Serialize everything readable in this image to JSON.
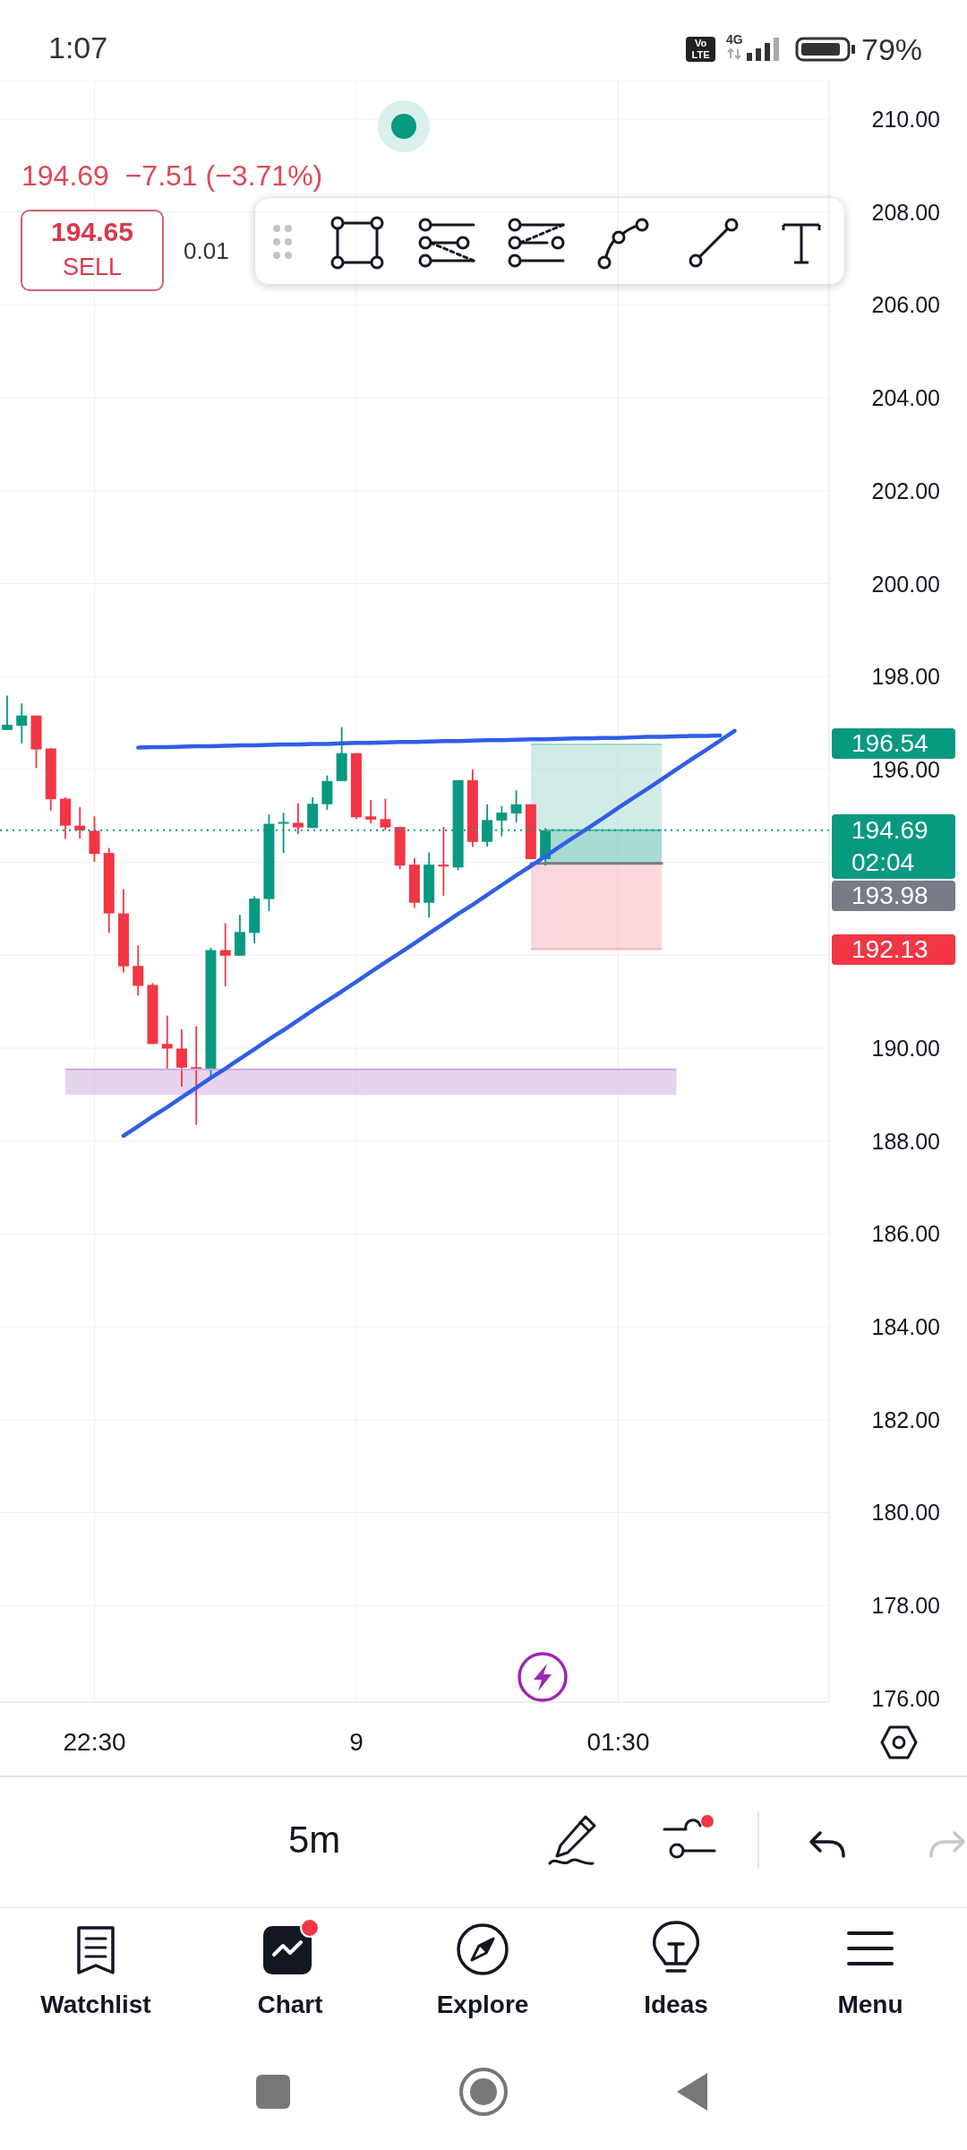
{
  "chart_data": {
    "type": "candlestick",
    "subtitle": "194.69  −7.51 (−3.71%)",
    "categories": [
      null,
      null,
      null,
      null,
      null,
      null,
      "22:30",
      null,
      null,
      null,
      null,
      null,
      null,
      null,
      null,
      null,
      null,
      null,
      null,
      null,
      null,
      null,
      null,
      null,
      "9",
      null,
      null,
      null,
      null,
      null,
      null,
      null,
      null,
      null,
      null,
      null,
      null,
      null,
      null,
      null,
      null,
      null,
      "01:30",
      null,
      null,
      null,
      null,
      null,
      null,
      null,
      null,
      null,
      null,
      null,
      null,
      null,
      null
    ],
    "series": [
      {
        "type": "line",
        "values": [
          null,
          null,
          null,
          null,
          189.54,
          189.54,
          189.54,
          189.54,
          189.54,
          189.54,
          189.54,
          189.54,
          189.54,
          189.54,
          189.54,
          189.54,
          189.54,
          189.54,
          189.54,
          189.54,
          189.54,
          189.54,
          189.54,
          189.54,
          189.54,
          189.54,
          189.54,
          189.54,
          189.54,
          189.54,
          189.54,
          189.54,
          189.54,
          189.54,
          189.54,
          189.54,
          189.54,
          189.54,
          189.54,
          189.54,
          189.54,
          189.54,
          189.54,
          189.54,
          189.54,
          189.54,
          189.54,
          null,
          null,
          null,
          null,
          null,
          null,
          null,
          null,
          null,
          null
        ],
        "lower": [
          null,
          null,
          null,
          null,
          188.99,
          188.99,
          188.99,
          188.99,
          188.99,
          188.99,
          188.99,
          188.99,
          188.99,
          188.99,
          188.99,
          188.99,
          188.99,
          188.99,
          188.99,
          188.99,
          188.99,
          188.99,
          188.99,
          188.99,
          188.99,
          188.99,
          188.99,
          188.99,
          188.99,
          188.99,
          188.99,
          188.99,
          188.99,
          188.99,
          188.99,
          188.99,
          188.99,
          188.99,
          188.99,
          188.99,
          188.99,
          188.99,
          188.99,
          188.99,
          188.99,
          188.99,
          188.99,
          null,
          null,
          null,
          null,
          null,
          null,
          null,
          null,
          null,
          null
        ],
        "upper": [
          null,
          null,
          null,
          null,
          189.54,
          189.54,
          189.54,
          189.54,
          189.54,
          189.54,
          189.54,
          189.54,
          189.54,
          189.54,
          189.54,
          189.54,
          189.54,
          189.54,
          189.54,
          189.54,
          189.54,
          189.54,
          189.54,
          189.54,
          189.54,
          189.54,
          189.54,
          189.54,
          189.54,
          189.54,
          189.54,
          189.54,
          189.54,
          189.54,
          189.54,
          189.54,
          189.54,
          189.54,
          189.54,
          189.54,
          189.54,
          189.54,
          189.54,
          189.54,
          189.54,
          189.54,
          189.54,
          null,
          null,
          null,
          null,
          null,
          null,
          null,
          null,
          null,
          null
        ],
        "color": "#cda9df"
      },
      {
        "type": "line",
        "values": [
          null,
          null,
          null,
          null,
          null,
          null,
          null,
          null,
          null,
          null,
          null,
          null,
          null,
          null,
          null,
          null,
          null,
          null,
          null,
          null,
          null,
          null,
          null,
          null,
          null,
          null,
          null,
          null,
          null,
          null,
          null,
          null,
          null,
          null,
          null,
          null,
          196.54,
          196.54,
          196.54,
          196.54,
          196.54,
          196.54,
          196.54,
          196.54,
          196.54,
          196.54,
          null,
          null,
          null,
          null,
          null,
          null,
          null,
          null,
          null,
          null,
          null
        ],
        "lower": [
          null,
          null,
          null,
          null,
          null,
          null,
          null,
          null,
          null,
          null,
          null,
          null,
          null,
          null,
          null,
          null,
          null,
          null,
          null,
          null,
          null,
          null,
          null,
          null,
          null,
          null,
          null,
          null,
          null,
          null,
          null,
          null,
          null,
          null,
          null,
          null,
          194.69,
          194.69,
          194.69,
          194.69,
          194.69,
          194.69,
          194.69,
          194.69,
          194.69,
          194.69,
          null,
          null,
          null,
          null,
          null,
          null,
          null,
          null,
          null,
          null,
          null
        ],
        "upper": [
          null,
          null,
          null,
          null,
          null,
          null,
          null,
          null,
          null,
          null,
          null,
          null,
          null,
          null,
          null,
          null,
          null,
          null,
          null,
          null,
          null,
          null,
          null,
          null,
          null,
          null,
          null,
          null,
          null,
          null,
          null,
          null,
          null,
          null,
          null,
          null,
          196.54,
          196.54,
          196.54,
          196.54,
          196.54,
          196.54,
          196.54,
          196.54,
          196.54,
          196.54,
          null,
          null,
          null,
          null,
          null,
          null,
          null,
          null,
          null,
          null,
          null
        ],
        "color": "#a3d9cf"
      },
      {
        "type": "line",
        "values": [
          null,
          null,
          null,
          null,
          null,
          null,
          null,
          null,
          null,
          null,
          null,
          null,
          null,
          null,
          null,
          null,
          null,
          null,
          null,
          null,
          null,
          null,
          null,
          null,
          null,
          null,
          null,
          null,
          null,
          null,
          null,
          null,
          null,
          null,
          null,
          null,
          null,
          194.69,
          194.69,
          194.69,
          194.69,
          194.69,
          194.69,
          194.69,
          194.69,
          194.69,
          null,
          null,
          null,
          null,
          null,
          null,
          null,
          null,
          null,
          null,
          null
        ],
        "lower": [
          null,
          null,
          null,
          null,
          null,
          null,
          null,
          null,
          null,
          null,
          null,
          null,
          null,
          null,
          null,
          null,
          null,
          null,
          null,
          null,
          null,
          null,
          null,
          null,
          null,
          null,
          null,
          null,
          null,
          null,
          null,
          null,
          null,
          null,
          null,
          null,
          null,
          193.98,
          193.98,
          193.98,
          193.98,
          193.98,
          193.98,
          193.98,
          193.98,
          193.98,
          null,
          null,
          null,
          null,
          null,
          null,
          null,
          null,
          null,
          null,
          null
        ],
        "upper": [
          null,
          null,
          null,
          null,
          null,
          null,
          null,
          null,
          null,
          null,
          null,
          null,
          null,
          null,
          null,
          null,
          null,
          null,
          null,
          null,
          null,
          null,
          null,
          null,
          null,
          null,
          null,
          null,
          null,
          null,
          null,
          null,
          null,
          null,
          null,
          null,
          null,
          194.69,
          194.69,
          194.69,
          194.69,
          194.69,
          194.69,
          194.69,
          194.69,
          194.69,
          null,
          null,
          null,
          null,
          null,
          null,
          null,
          null,
          null,
          null,
          null
        ],
        "color": "#51b9a5"
      },
      {
        "type": "line",
        "values": [
          null,
          null,
          null,
          null,
          null,
          null,
          null,
          null,
          null,
          null,
          null,
          null,
          null,
          null,
          null,
          null,
          null,
          null,
          null,
          null,
          null,
          null,
          null,
          null,
          null,
          null,
          null,
          null,
          null,
          null,
          null,
          null,
          null,
          null,
          null,
          null,
          192.13,
          192.13,
          192.13,
          192.13,
          192.13,
          192.13,
          192.13,
          192.13,
          192.13,
          192.13,
          null,
          null,
          null,
          null,
          null,
          null,
          null,
          null,
          null,
          null,
          null
        ],
        "lower": [
          null,
          null,
          null,
          null,
          null,
          null,
          null,
          null,
          null,
          null,
          null,
          null,
          null,
          null,
          null,
          null,
          null,
          null,
          null,
          null,
          null,
          null,
          null,
          null,
          null,
          null,
          null,
          null,
          null,
          null,
          null,
          null,
          null,
          null,
          null,
          null,
          192.13,
          192.13,
          192.13,
          192.13,
          192.13,
          192.13,
          192.13,
          192.13,
          192.13,
          192.13,
          null,
          null,
          null,
          null,
          null,
          null,
          null,
          null,
          null,
          null,
          null
        ],
        "upper": [
          null,
          null,
          null,
          null,
          null,
          null,
          null,
          null,
          null,
          null,
          null,
          null,
          null,
          null,
          null,
          null,
          null,
          null,
          null,
          null,
          null,
          null,
          null,
          null,
          null,
          null,
          null,
          null,
          null,
          null,
          null,
          null,
          null,
          null,
          null,
          null,
          193.98,
          193.98,
          193.98,
          193.98,
          193.98,
          193.98,
          193.98,
          193.98,
          193.98,
          193.98,
          null,
          null,
          null,
          null,
          null,
          null,
          null,
          null,
          null,
          null,
          null
        ],
        "color": "#f7b1b9"
      },
      {
        "ohlc": [
          [
            196.85,
            197.59,
            196.85,
            196.96
          ],
          [
            196.94,
            197.42,
            196.56,
            197.16
          ],
          [
            197.16,
            197.16,
            196.03,
            196.43
          ],
          [
            196.45,
            196.46,
            195.11,
            195.36
          ],
          [
            195.37,
            195.4,
            194.51,
            194.79
          ],
          [
            194.79,
            195.19,
            194.51,
            194.69
          ],
          [
            194.68,
            194.99,
            194.01,
            194.18
          ],
          [
            194.2,
            194.31,
            192.48,
            192.9
          ],
          [
            192.9,
            193.42,
            191.63,
            191.76
          ],
          [
            191.77,
            192.21,
            191.13,
            191.34
          ],
          [
            191.36,
            191.4,
            190.09,
            190.09
          ],
          [
            190.09,
            190.7,
            189.54,
            189.99
          ],
          [
            189.99,
            190.4,
            189.17,
            189.58
          ],
          [
            189.59,
            190.47,
            188.35,
            189.54
          ],
          [
            189.54,
            192.16,
            189.38,
            192.11
          ],
          [
            192.11,
            192.69,
            191.33,
            191.99
          ],
          [
            191.99,
            192.87,
            191.99,
            192.5
          ],
          [
            192.48,
            193.27,
            192.26,
            193.22
          ],
          [
            193.21,
            195.03,
            192.95,
            194.83
          ],
          [
            194.84,
            195.07,
            194.2,
            194.87
          ],
          [
            194.85,
            195.27,
            194.61,
            194.75
          ],
          [
            194.74,
            195.4,
            194.74,
            195.26
          ],
          [
            195.25,
            195.87,
            195.13,
            195.75
          ],
          [
            195.75,
            196.91,
            195.75,
            196.35
          ],
          [
            196.35,
            196.35,
            194.93,
            194.97
          ],
          [
            194.99,
            195.34,
            194.84,
            194.92
          ],
          [
            194.93,
            195.37,
            194.69,
            194.75
          ],
          [
            194.76,
            194.77,
            193.85,
            193.93
          ],
          [
            193.95,
            194.09,
            193.02,
            193.13
          ],
          [
            193.13,
            194.21,
            192.81,
            193.95
          ],
          [
            193.95,
            194.76,
            193.28,
            193.91
          ],
          [
            193.89,
            195.77,
            193.83,
            195.77
          ],
          [
            195.77,
            196.0,
            194.33,
            194.44
          ],
          [
            194.44,
            195.25,
            194.34,
            194.91
          ],
          [
            194.9,
            195.21,
            194.56,
            195.07
          ],
          [
            195.05,
            195.55,
            194.86,
            195.25
          ],
          [
            195.25,
            195.25,
            194.07,
            194.07
          ],
          [
            194.07,
            194.74,
            193.93,
            194.69
          ],
          null,
          null,
          null,
          null,
          null,
          null,
          null,
          null,
          null,
          null,
          null,
          null,
          null,
          null,
          null,
          null,
          null,
          null,
          null
        ],
        "colors": [
          "#089981",
          "#089981",
          "#f23645",
          "#f23645",
          "#f23645",
          "#f23645",
          "#f23645",
          "#f23645",
          "#f23645",
          "#f23645",
          "#f23645",
          "#f23645",
          "#f23645",
          "#f23645",
          "#089981",
          "#f23645",
          "#089981",
          "#089981",
          "#089981",
          "#089981",
          "#f23645",
          "#089981",
          "#089981",
          "#089981",
          "#f23645",
          "#f23645",
          "#f23645",
          "#f23645",
          "#f23645",
          "#089981",
          "#f23645",
          "#089981",
          "#f23645",
          "#089981",
          "#089981",
          "#089981",
          "#f23645",
          "#089981",
          null,
          null,
          null,
          null,
          null,
          null,
          null,
          null,
          null,
          null,
          null,
          null,
          null,
          null,
          null,
          null,
          null,
          null,
          null
        ]
      },
      {
        "type": "line",
        "values": [
          null,
          null,
          null,
          null,
          null,
          null,
          null,
          null,
          null,
          null,
          null,
          null,
          null,
          null,
          null,
          null,
          null,
          null,
          null,
          null,
          null,
          null,
          null,
          null,
          null,
          null,
          null,
          null,
          null,
          null,
          null,
          null,
          null,
          null,
          null,
          null,
          193.98,
          193.98,
          193.98,
          193.98,
          193.98,
          193.98,
          193.98,
          193.98,
          193.98,
          193.98,
          null,
          null,
          null,
          null,
          null,
          null,
          null,
          null,
          null,
          null,
          null
        ],
        "color": "#787b86"
      },
      {
        "type": "line",
        "values": [
          null,
          null,
          null,
          null,
          null,
          null,
          null,
          null,
          null,
          196.47,
          196.48,
          196.48,
          196.49,
          196.5,
          196.5,
          196.51,
          196.52,
          196.52,
          196.53,
          196.54,
          196.54,
          196.55,
          196.55,
          196.56,
          196.57,
          196.57,
          196.58,
          196.59,
          196.59,
          196.6,
          196.61,
          196.61,
          196.62,
          196.63,
          196.63,
          196.64,
          196.65,
          196.65,
          196.66,
          196.67,
          196.67,
          196.68,
          196.68,
          196.69,
          196.7,
          196.7,
          196.71,
          196.72,
          196.72,
          196.73,
          null,
          null,
          null,
          null,
          null,
          null,
          null
        ],
        "color": "#2f5ee8"
      },
      {
        "type": "line",
        "values": [
          null,
          null,
          null,
          null,
          null,
          null,
          null,
          null,
          188.11,
          188.32,
          188.53,
          188.73,
          188.94,
          189.15,
          189.36,
          189.56,
          189.77,
          189.98,
          190.19,
          190.39,
          190.6,
          190.81,
          191.02,
          191.22,
          191.43,
          191.64,
          191.85,
          192.05,
          192.26,
          192.47,
          192.68,
          192.89,
          193.09,
          193.3,
          193.51,
          193.72,
          193.92,
          194.13,
          194.34,
          194.55,
          194.75,
          194.96,
          195.17,
          195.38,
          195.58,
          195.79,
          196.0,
          196.21,
          196.41,
          196.62,
          196.83,
          null,
          null,
          null,
          null,
          null,
          null
        ],
        "color": "#2f5ee8"
      }
    ],
    "ylim": [
      175.92,
      210.83
    ],
    "yticks": [
      {
        "value": 176,
        "label": "176.00"
      },
      {
        "value": 178,
        "label": "178.00"
      },
      {
        "value": 180,
        "label": "180.00"
      },
      {
        "value": 182,
        "label": "182.00"
      },
      {
        "value": 184,
        "label": "184.00"
      },
      {
        "value": 186,
        "label": "186.00"
      },
      {
        "value": 188,
        "label": "188.00"
      },
      {
        "value": 190,
        "label": "190.00"
      },
      {
        "value": 192,
        "label": null
      },
      {
        "value": 194,
        "label": null
      },
      {
        "value": 196,
        "label": "196.00"
      },
      {
        "value": 198,
        "label": "198.00"
      },
      {
        "value": 200,
        "label": "200.00"
      },
      {
        "value": 202,
        "label": "202.00"
      },
      {
        "value": 204,
        "label": "204.00"
      },
      {
        "value": 206,
        "label": "206.00"
      },
      {
        "value": 208,
        "label": "208.00"
      },
      {
        "value": 210,
        "label": "210.00"
      }
    ],
    "grid": true,
    "ref_lines": [
      {
        "axis": "y",
        "value": 194.69,
        "label": "194.69 02:04",
        "color": "#089981",
        "line_style": "dotted"
      }
    ],
    "annotations": [
      "1:07",
      "Vo",
      "LTE",
      "4G",
      "79%",
      "194.65",
      "SELL",
      "0.01",
      "5m",
      "Watchlist",
      "Chart",
      "Explore",
      "Ideas",
      "Menu",
      "196.54",
      "193.98",
      "192.13"
    ]
  }
}
